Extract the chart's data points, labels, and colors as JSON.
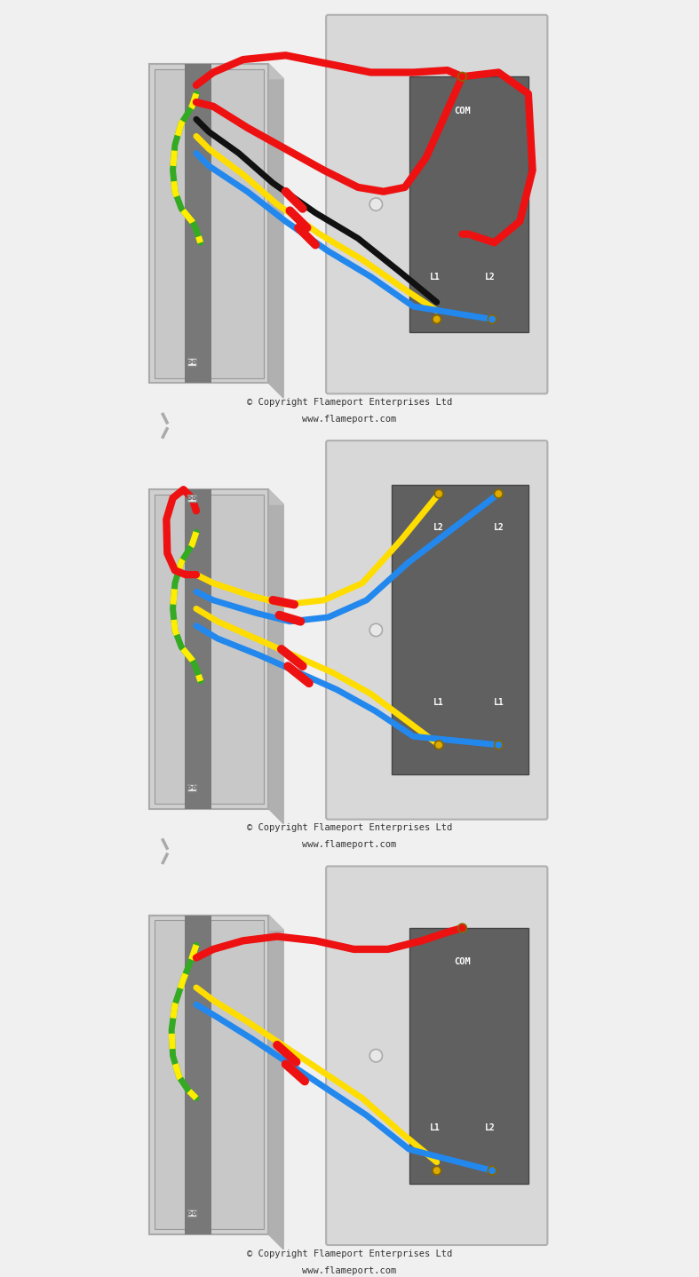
{
  "bg_color": "#f0f0f0",
  "plate_color": "#d8d8d8",
  "plate_edge": "#b0b0b0",
  "box_face": "#d0d0d0",
  "box_edge": "#aaaaaa",
  "box_inner": "#c8c8c8",
  "cable_gray": "#787878",
  "terminal_dark": "#606060",
  "terminal_label_color": "#ffffff",
  "hole_color": "#e8e8e8",
  "wire_red": "#ee1111",
  "wire_blue": "#2288ee",
  "wire_yellow": "#ffdd00",
  "wire_black": "#111111",
  "wire_gy_green": "#33aa22",
  "wire_gy_yellow": "#ffee00",
  "terminal_gold": "#ddaa00",
  "terminal_blue_dot": "#2288ee",
  "copyright_text": "© Copyright Flameport Enterprises Ltd",
  "url_text": "www.flameport.com",
  "font_color": "#333333",
  "wire_lw": 5,
  "dashed_gray": "#aaaaaa",
  "panel1_label_com": "COM",
  "panel1_label_l1": "L1",
  "panel1_label_l2": "L2",
  "panel2_label_l2a": "L2",
  "panel2_label_l2b": "L2",
  "panel2_label_l1a": "L1",
  "panel2_label_l1b": "L1",
  "panel3_label_com": "COM",
  "panel3_label_l1": "L1",
  "panel3_label_l2": "L2"
}
